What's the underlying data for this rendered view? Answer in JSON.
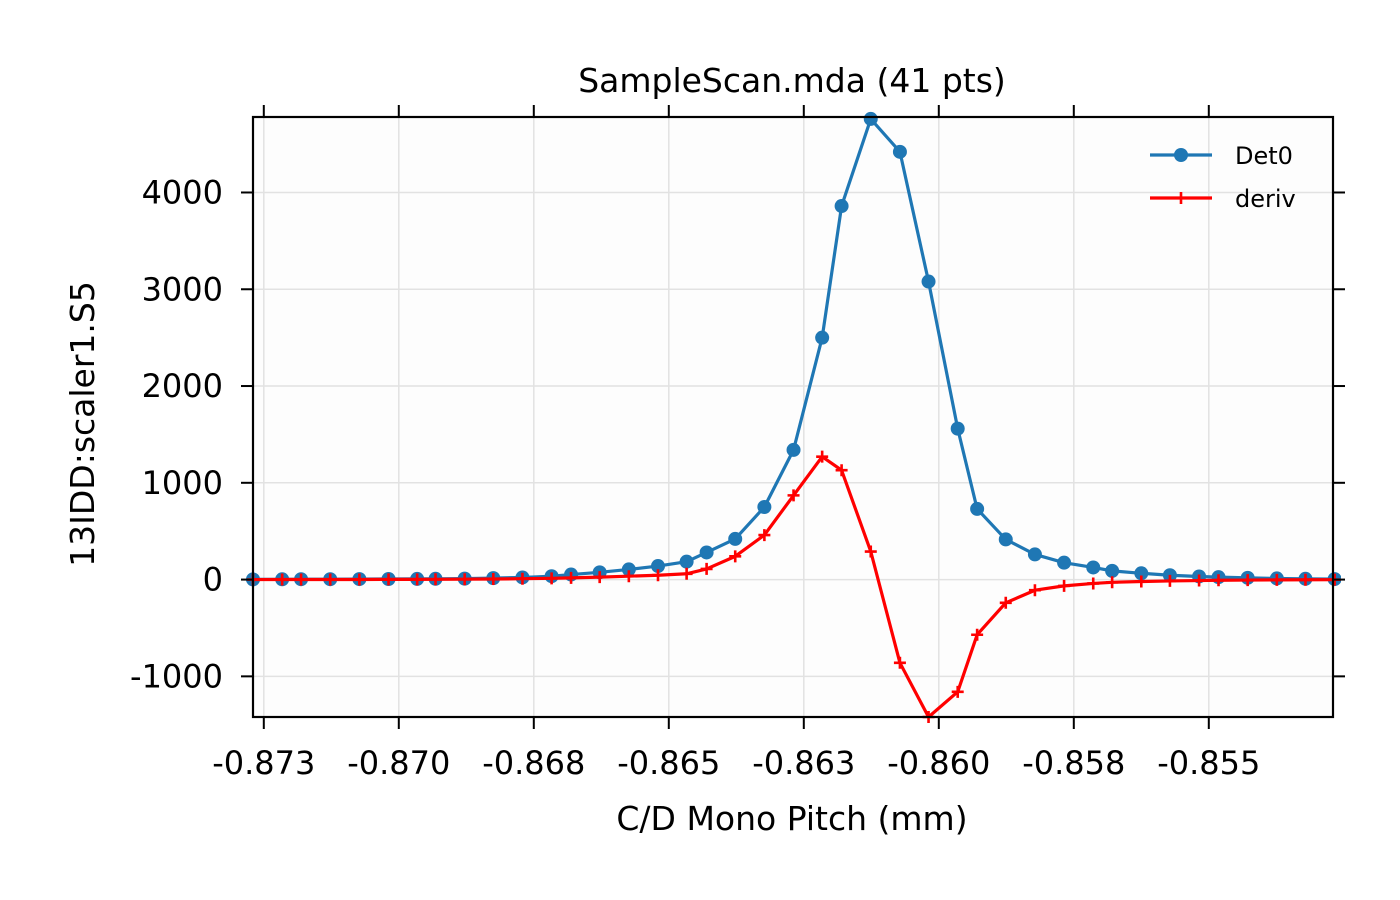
{
  "chart_data": {
    "type": "line",
    "title": "SampleScan.mda (41 pts)",
    "xlabel": "C/D Mono Pitch (mm)",
    "ylabel": "13IDD:scaler1.S5",
    "xlim": [
      -0.8732,
      -0.8532
    ],
    "ylim": [
      -1420,
      4780
    ],
    "x_ticks": [
      -0.873,
      -0.8705,
      -0.868,
      -0.8655,
      -0.863,
      -0.8605,
      -0.858,
      -0.8555
    ],
    "x_tick_labels": [
      "-0.873",
      "-0.870",
      "-0.868",
      "-0.865",
      "-0.863",
      "-0.860",
      "-0.858",
      "-0.855"
    ],
    "y_ticks": [
      -1000,
      0,
      1000,
      2000,
      3000,
      4000
    ],
    "y_tick_labels": [
      "-1000",
      "0",
      "1000",
      "2000",
      "3000",
      "4000"
    ],
    "grid": true,
    "legend_position": "top-right",
    "x": [
      -0.8732,
      -0.87266,
      -0.87231,
      -0.87177,
      -0.87123,
      -0.87069,
      -0.87016,
      -0.86982,
      -0.86928,
      -0.86875,
      -0.86821,
      -0.86767,
      -0.86731,
      -0.86678,
      -0.86624,
      -0.8657,
      -0.86517,
      -0.8648,
      -0.86427,
      -0.86373,
      -0.86319,
      -0.86266,
      -0.8623,
      -0.86176,
      -0.86122,
      -0.86069,
      -0.86015,
      -0.85979,
      -0.85926,
      -0.85872,
      -0.85818,
      -0.85764,
      -0.85729,
      -0.85675,
      -0.85622,
      -0.85568,
      -0.85532,
      -0.85478,
      -0.85424,
      -0.85371,
      -0.85317
    ],
    "series": [
      {
        "name": "Det0",
        "color": "#1f77b4",
        "marker": "circle",
        "values": [
          2,
          3,
          4,
          4,
          5,
          6,
          7,
          8,
          10,
          15,
          22,
          35,
          52,
          75,
          105,
          140,
          185,
          280,
          420,
          750,
          1340,
          2500,
          3860,
          4760,
          4420,
          3080,
          1560,
          730,
          415,
          260,
          175,
          125,
          90,
          65,
          45,
          32,
          25,
          18,
          12,
          8,
          5
        ]
      },
      {
        "name": "deriv",
        "color": "#ff0000",
        "marker": "plus",
        "values": [
          0,
          1,
          1,
          1,
          1,
          2,
          2,
          3,
          4,
          6,
          9,
          13,
          18,
          25,
          35,
          45,
          60,
          110,
          240,
          460,
          870,
          1270,
          1130,
          290,
          -860,
          -1420,
          -1160,
          -570,
          -240,
          -110,
          -65,
          -40,
          -28,
          -20,
          -14,
          -10,
          -7,
          -5,
          -3,
          -2,
          -1
        ]
      }
    ]
  }
}
